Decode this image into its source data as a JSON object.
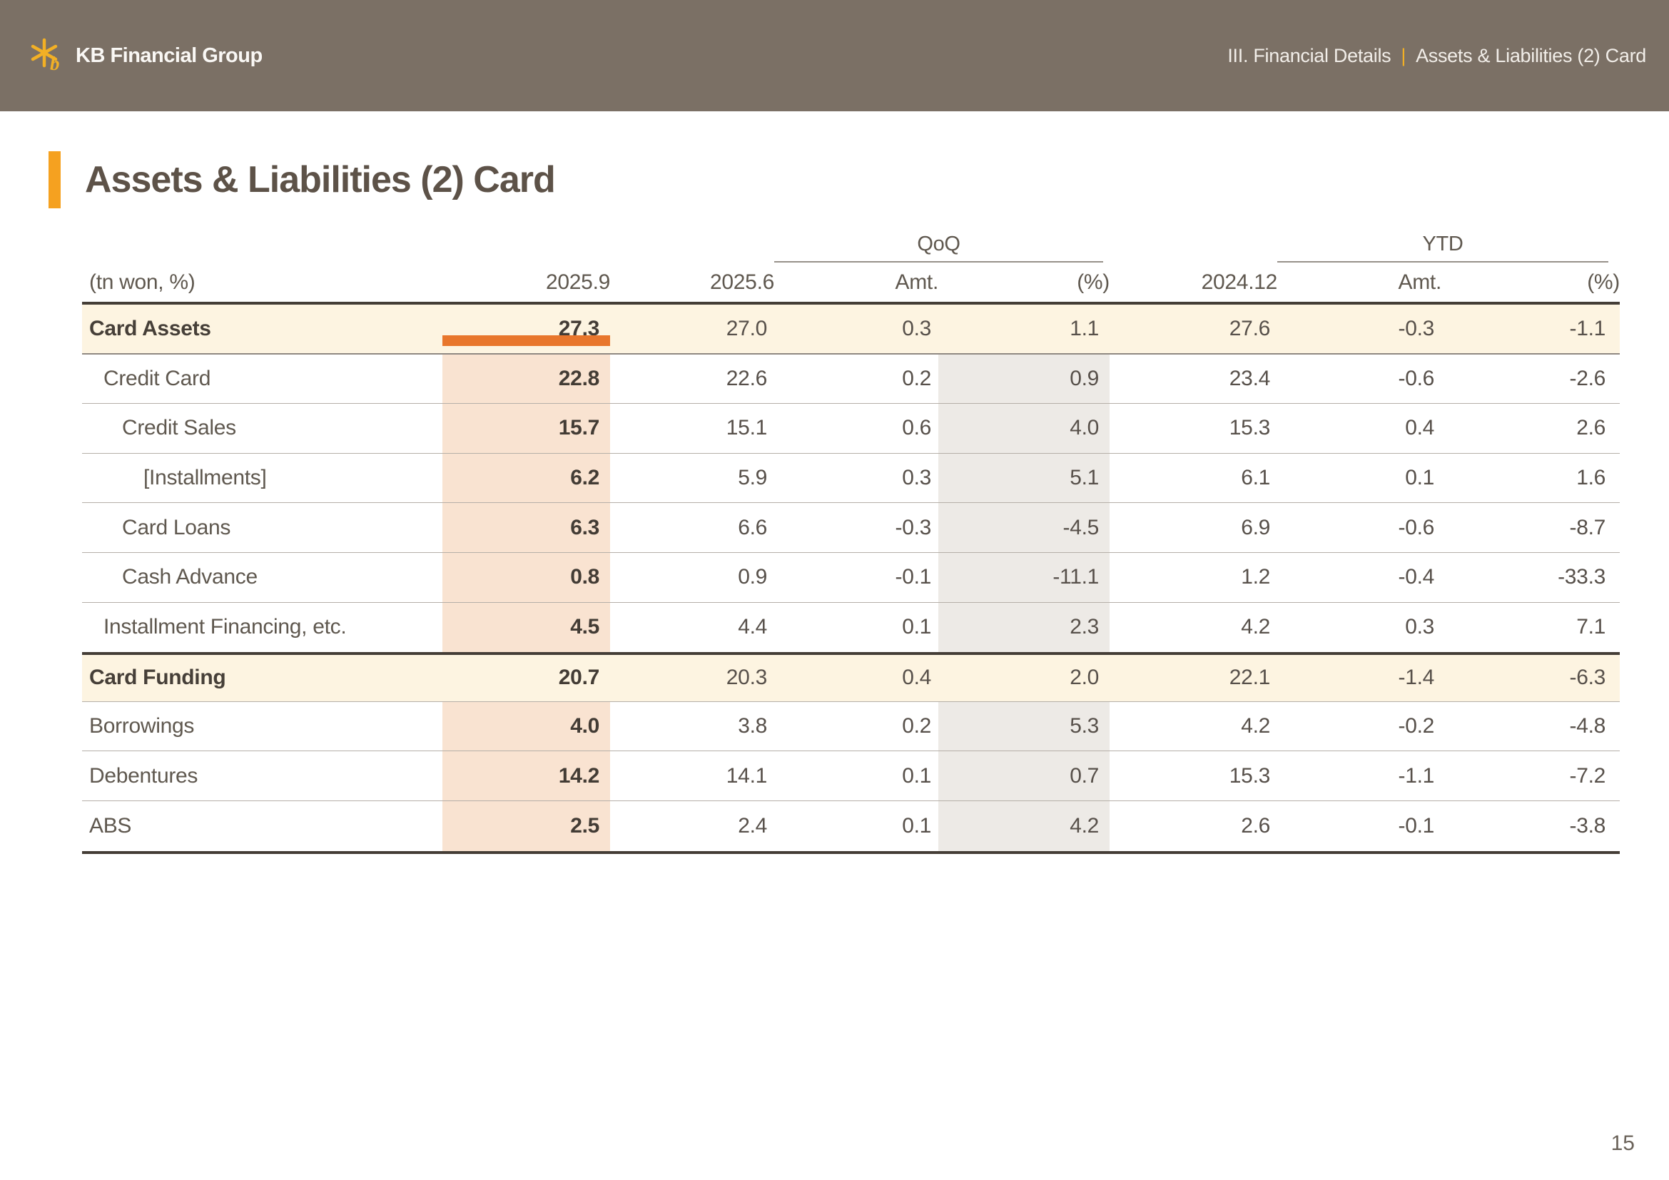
{
  "header": {
    "logo_text": "KB Financial Group",
    "breadcrumb_section": "III. Financial Details",
    "breadcrumb_separator": "|",
    "breadcrumb_page": "Assets & Liabilities (2) Card"
  },
  "title": "Assets & Liabilities (2) Card",
  "page_number": "15",
  "colors": {
    "accent_orange": "#E8762C",
    "date_orange": "#DD6E1F",
    "brand_gold": "#F2B025",
    "header_bar": "#7B7065",
    "cream": "#FDF4E1",
    "peach": "#F9E3D1",
    "gray_band": "#EDEAE6"
  },
  "table": {
    "unit_label": "(tn won, %)",
    "groups": [
      {
        "label": "QoQ"
      },
      {
        "label": "YTD"
      }
    ],
    "columns": [
      "2025.9",
      "2025.6",
      "Amt.",
      "(%)",
      "2024.12",
      "Amt.",
      "(%)"
    ],
    "highlight_column": "2025.9",
    "rows": [
      {
        "label": "Card Assets",
        "indent": 0,
        "bold": true,
        "emphasis": true,
        "values": [
          "27.3",
          "27.0",
          "0.3",
          "1.1",
          "27.6",
          "-0.3",
          "-1.1"
        ]
      },
      {
        "label": "Credit Card",
        "indent": 1,
        "bold": false,
        "emphasis": false,
        "values": [
          "22.8",
          "22.6",
          "0.2",
          "0.9",
          "23.4",
          "-0.6",
          "-2.6"
        ]
      },
      {
        "label": "Credit Sales",
        "indent": 2,
        "bold": false,
        "emphasis": false,
        "values": [
          "15.7",
          "15.1",
          "0.6",
          "4.0",
          "15.3",
          "0.4",
          "2.6"
        ]
      },
      {
        "label": "[Installments]",
        "indent": 3,
        "bold": false,
        "emphasis": false,
        "values": [
          "6.2",
          "5.9",
          "0.3",
          "5.1",
          "6.1",
          "0.1",
          "1.6"
        ]
      },
      {
        "label": "Card Loans",
        "indent": 2,
        "bold": false,
        "emphasis": false,
        "values": [
          "6.3",
          "6.6",
          "-0.3",
          "-4.5",
          "6.9",
          "-0.6",
          "-8.7"
        ]
      },
      {
        "label": "Cash Advance",
        "indent": 2,
        "bold": false,
        "emphasis": false,
        "values": [
          "0.8",
          "0.9",
          "-0.1",
          "-11.1",
          "1.2",
          "-0.4",
          "-33.3"
        ]
      },
      {
        "label": "Installment Financing, etc.",
        "indent": 1,
        "bold": false,
        "emphasis": false,
        "values": [
          "4.5",
          "4.4",
          "0.1",
          "2.3",
          "4.2",
          "0.3",
          "7.1"
        ]
      },
      {
        "label": "Card Funding",
        "indent": 0,
        "bold": true,
        "emphasis": true,
        "section_start": true,
        "values": [
          "20.7",
          "20.3",
          "0.4",
          "2.0",
          "22.1",
          "-1.4",
          "-6.3"
        ]
      },
      {
        "label": "Borrowings",
        "indent": 0,
        "bold": false,
        "emphasis": false,
        "values": [
          "4.0",
          "3.8",
          "0.2",
          "5.3",
          "4.2",
          "-0.2",
          "-4.8"
        ]
      },
      {
        "label": "Debentures",
        "indent": 0,
        "bold": false,
        "emphasis": false,
        "values": [
          "14.2",
          "14.1",
          "0.1",
          "0.7",
          "15.3",
          "-1.1",
          "-7.2"
        ]
      },
      {
        "label": "ABS",
        "indent": 0,
        "bold": false,
        "emphasis": false,
        "values": [
          "2.5",
          "2.4",
          "0.1",
          "4.2",
          "2.6",
          "-0.1",
          "-3.8"
        ]
      }
    ]
  }
}
